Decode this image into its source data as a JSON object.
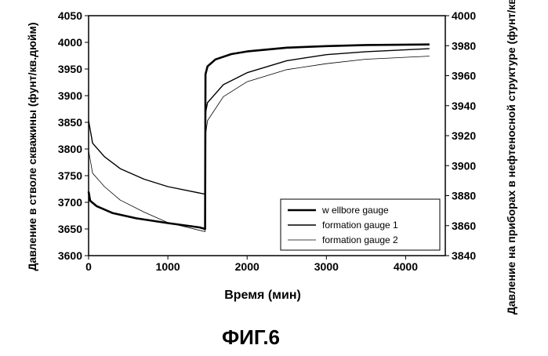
{
  "figure_caption": "ФИГ.6",
  "chart_data": {
    "type": "line",
    "xlabel": "Время (мин)",
    "ylabel_left": "Давление в стволе скважины (фунт/кв.дюйм)",
    "ylabel_right": "Давление на приборах в нефтеносной структуре (фунт/кв.дюйм)",
    "xlim": [
      0,
      4500
    ],
    "ylim_left": [
      3600,
      4050
    ],
    "ylim_right": [
      3840,
      4000
    ],
    "x_ticks": [
      0,
      1000,
      2000,
      3000,
      4000
    ],
    "y_left_ticks": [
      3600,
      3650,
      3700,
      3750,
      3800,
      3850,
      3900,
      3950,
      4000,
      4050
    ],
    "y_right_ticks": [
      3840,
      3860,
      3880,
      3900,
      3920,
      3940,
      3960,
      3980,
      4000
    ],
    "grid": false,
    "legend_position": "bottom-right",
    "series": [
      {
        "name": "w ellbore gauge",
        "axis": "left",
        "color": "#000000",
        "line_weight": "heavy",
        "points": [
          [
            0,
            3720
          ],
          [
            20,
            3703
          ],
          [
            100,
            3693
          ],
          [
            300,
            3680
          ],
          [
            600,
            3670
          ],
          [
            1000,
            3661
          ],
          [
            1400,
            3653
          ],
          [
            1470,
            3650
          ],
          [
            1475,
            3940
          ],
          [
            1500,
            3955
          ],
          [
            1600,
            3968
          ],
          [
            1800,
            3978
          ],
          [
            2000,
            3983
          ],
          [
            2500,
            3990
          ],
          [
            3000,
            3993
          ],
          [
            3500,
            3995
          ],
          [
            4300,
            3996
          ]
        ]
      },
      {
        "name": "formation gauge 1",
        "axis": "right",
        "color": "#000000",
        "line_weight": "medium",
        "points": [
          [
            0,
            3930
          ],
          [
            50,
            3915
          ],
          [
            200,
            3906
          ],
          [
            400,
            3898
          ],
          [
            700,
            3891
          ],
          [
            1000,
            3886
          ],
          [
            1470,
            3881
          ],
          [
            1475,
            3935
          ],
          [
            1500,
            3942
          ],
          [
            1700,
            3954
          ],
          [
            2000,
            3962
          ],
          [
            2500,
            3970
          ],
          [
            3000,
            3974
          ],
          [
            3500,
            3976
          ],
          [
            4300,
            3978
          ]
        ]
      },
      {
        "name": "formation gauge 2",
        "axis": "right",
        "color": "#000000",
        "line_weight": "thin",
        "points": [
          [
            0,
            3910
          ],
          [
            50,
            3895
          ],
          [
            200,
            3886
          ],
          [
            400,
            3877
          ],
          [
            700,
            3869
          ],
          [
            1000,
            3862
          ],
          [
            1470,
            3856
          ],
          [
            1475,
            3920
          ],
          [
            1500,
            3930
          ],
          [
            1700,
            3946
          ],
          [
            2000,
            3956
          ],
          [
            2500,
            3964
          ],
          [
            3000,
            3968
          ],
          [
            3500,
            3971
          ],
          [
            4300,
            3973
          ]
        ]
      }
    ]
  }
}
